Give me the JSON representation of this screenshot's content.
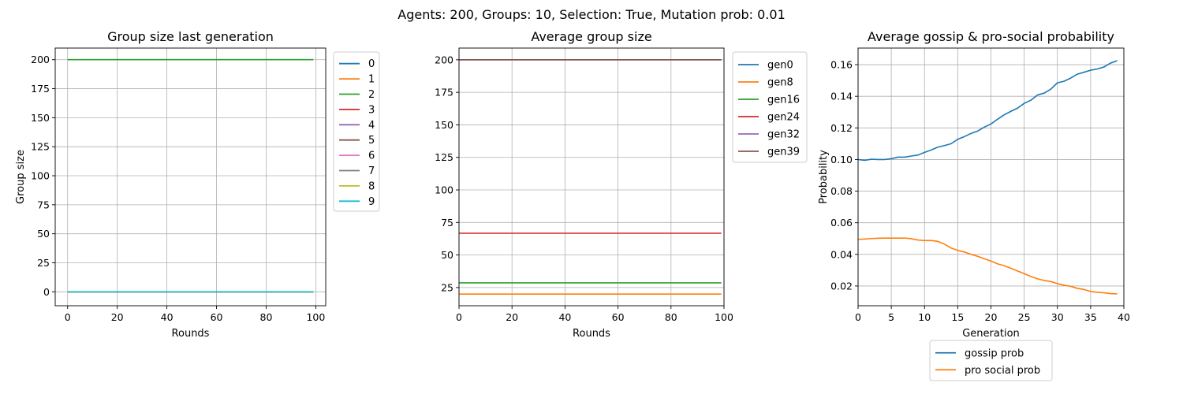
{
  "suptitle": "Agents: 200, Groups: 10, Selection: True, Mutation prob: 0.01",
  "colors": [
    "#1f77b4",
    "#ff7f0e",
    "#2ca02c",
    "#d62728",
    "#9467bd",
    "#8c564b",
    "#e377c2",
    "#7f7f7f",
    "#bcbd22",
    "#17becf"
  ],
  "chart_data": [
    {
      "type": "line",
      "title": "Group size last generation",
      "xlabel": "Rounds",
      "ylabel": "Group size",
      "xlim": [
        -5,
        104
      ],
      "ylim": [
        -12,
        210
      ],
      "xticks": [
        0,
        20,
        40,
        60,
        80,
        100
      ],
      "yticks": [
        0,
        25,
        50,
        75,
        100,
        125,
        150,
        175,
        200
      ],
      "grid": true,
      "legend_placement": "outside-right-top",
      "series": [
        {
          "name": "0",
          "x": [
            0,
            99
          ],
          "y": [
            0,
            0
          ]
        },
        {
          "name": "1",
          "x": [
            0,
            99
          ],
          "y": [
            0,
            0
          ]
        },
        {
          "name": "2",
          "x": [
            0,
            99
          ],
          "y": [
            200,
            200
          ]
        },
        {
          "name": "3",
          "x": [
            0,
            99
          ],
          "y": [
            0,
            0
          ]
        },
        {
          "name": "4",
          "x": [
            0,
            99
          ],
          "y": [
            0,
            0
          ]
        },
        {
          "name": "5",
          "x": [
            0,
            99
          ],
          "y": [
            0,
            0
          ]
        },
        {
          "name": "6",
          "x": [
            0,
            99
          ],
          "y": [
            0,
            0
          ]
        },
        {
          "name": "7",
          "x": [
            0,
            99
          ],
          "y": [
            0,
            0
          ]
        },
        {
          "name": "8",
          "x": [
            0,
            99
          ],
          "y": [
            0,
            0
          ]
        },
        {
          "name": "9",
          "x": [
            0,
            99
          ],
          "y": [
            0,
            0
          ]
        }
      ]
    },
    {
      "type": "line",
      "title": "Average group size",
      "xlabel": "Rounds",
      "ylabel": "",
      "xlim": [
        0,
        100
      ],
      "ylim": [
        11,
        209
      ],
      "xticks": [
        0,
        20,
        40,
        60,
        80,
        100
      ],
      "yticks": [
        25,
        50,
        75,
        100,
        125,
        150,
        175,
        200
      ],
      "grid": true,
      "legend_placement": "outside-right-top",
      "series": [
        {
          "name": "gen0",
          "x": [
            0,
            99
          ],
          "y": [
            200,
            200
          ]
        },
        {
          "name": "gen8",
          "x": [
            0,
            99
          ],
          "y": [
            20,
            20
          ]
        },
        {
          "name": "gen16",
          "x": [
            0,
            99
          ],
          "y": [
            28.6,
            28.6
          ]
        },
        {
          "name": "gen24",
          "x": [
            0,
            99
          ],
          "y": [
            66.7,
            66.7
          ]
        },
        {
          "name": "gen32",
          "x": [
            0,
            99
          ],
          "y": [
            200,
            200
          ]
        },
        {
          "name": "gen39",
          "x": [
            0,
            99
          ],
          "y": [
            200,
            200
          ]
        }
      ]
    },
    {
      "type": "line",
      "title": "Average gossip & pro-social probability",
      "xlabel": "Generation",
      "ylabel": "Probability",
      "xlim": [
        0,
        40
      ],
      "ylim": [
        0.0075,
        0.1705
      ],
      "xticks": [
        0,
        5,
        10,
        15,
        20,
        25,
        30,
        35,
        40
      ],
      "yticks": [
        0.02,
        0.04,
        0.06,
        0.08,
        0.1,
        0.12,
        0.14,
        0.16
      ],
      "ytick_labels": [
        "0.02",
        "0.04",
        "0.06",
        "0.08",
        "0.10",
        "0.12",
        "0.14",
        "0.16"
      ],
      "grid": true,
      "legend_placement": "below",
      "series": [
        {
          "name": "gossip prob",
          "x": [
            0,
            1,
            2,
            3,
            4,
            5,
            6,
            7,
            8,
            9,
            10,
            11,
            12,
            13,
            14,
            15,
            16,
            17,
            18,
            19,
            20,
            21,
            22,
            23,
            24,
            25,
            26,
            27,
            28,
            29,
            30,
            31,
            32,
            33,
            34,
            35,
            36,
            37,
            38,
            39
          ],
          "y": [
            0.1,
            0.0995,
            0.1002,
            0.1,
            0.1,
            0.1005,
            0.1015,
            0.1015,
            0.1022,
            0.1028,
            0.1045,
            0.106,
            0.1078,
            0.1088,
            0.11,
            0.1128,
            0.1145,
            0.1165,
            0.118,
            0.1205,
            0.1225,
            0.1255,
            0.1283,
            0.1305,
            0.1325,
            0.1355,
            0.1375,
            0.1408,
            0.142,
            0.1445,
            0.1485,
            0.1495,
            0.1515,
            0.154,
            0.1552,
            0.1565,
            0.1573,
            0.1585,
            0.161,
            0.1625
          ]
        },
        {
          "name": "pro social prob",
          "x": [
            0,
            1,
            2,
            3,
            4,
            5,
            6,
            7,
            8,
            9,
            10,
            11,
            12,
            13,
            14,
            15,
            16,
            17,
            18,
            19,
            20,
            21,
            22,
            23,
            24,
            25,
            26,
            27,
            28,
            29,
            30,
            31,
            32,
            33,
            34,
            35,
            36,
            37,
            38,
            39
          ],
          "y": [
            0.0495,
            0.0497,
            0.05,
            0.0502,
            0.0503,
            0.0503,
            0.0503,
            0.0503,
            0.0499,
            0.0491,
            0.0487,
            0.0488,
            0.0482,
            0.0465,
            0.044,
            0.0425,
            0.0415,
            0.04,
            0.0388,
            0.0372,
            0.0358,
            0.034,
            0.0328,
            0.0312,
            0.0295,
            0.0278,
            0.026,
            0.0245,
            0.0235,
            0.0228,
            0.0215,
            0.0205,
            0.0198,
            0.0185,
            0.0178,
            0.0165,
            0.016,
            0.0157,
            0.0152,
            0.015
          ]
        }
      ]
    }
  ]
}
